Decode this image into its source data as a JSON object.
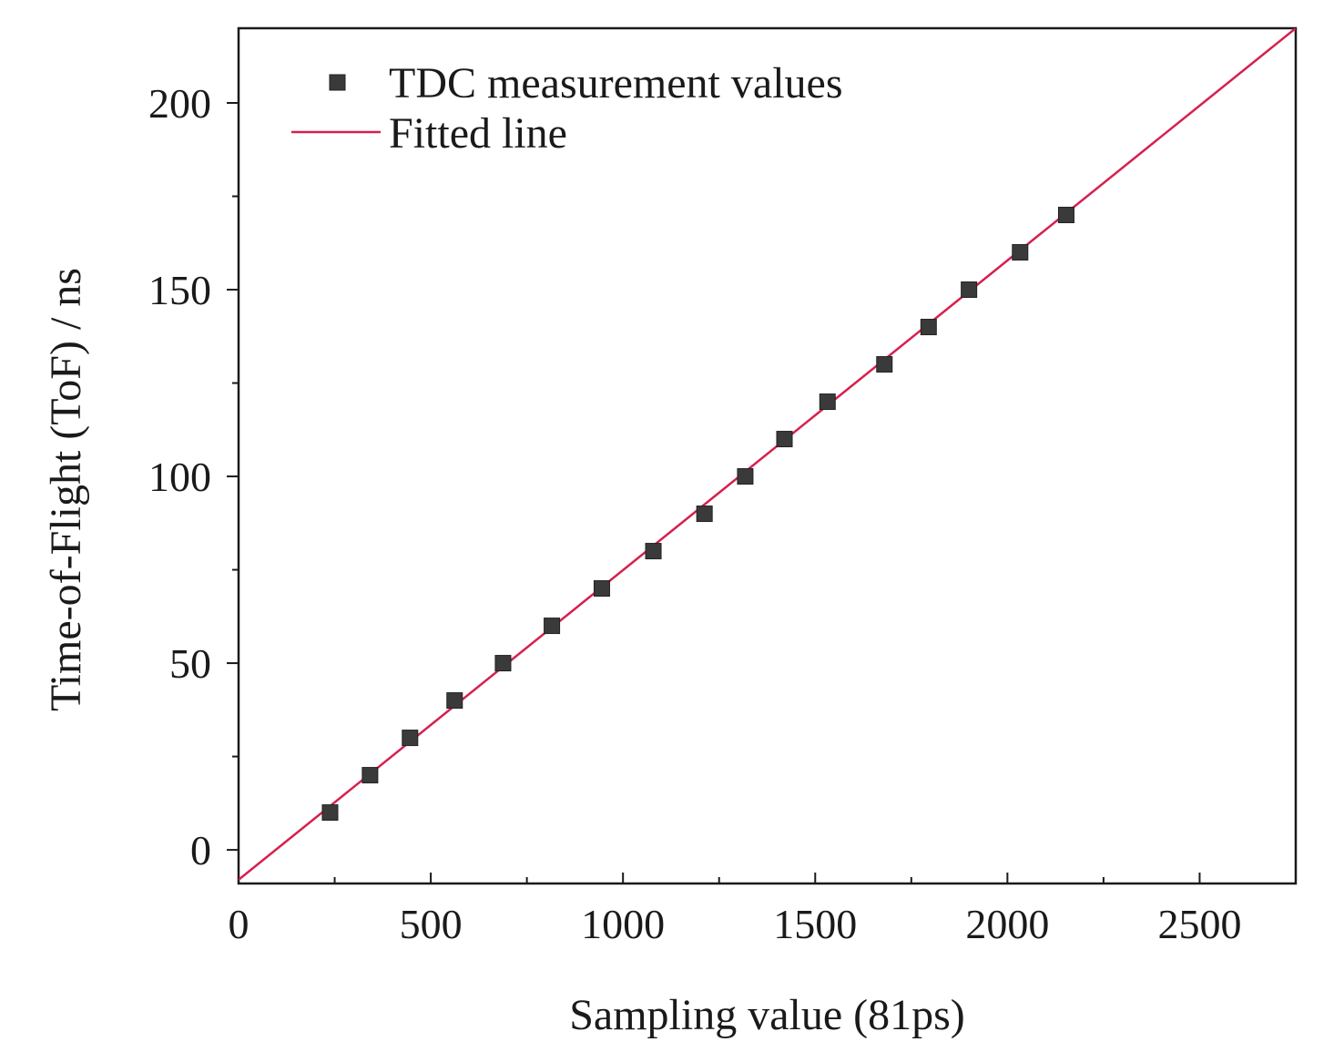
{
  "chart_data": {
    "type": "scatter",
    "xlabel": "Sampling value (81ps)",
    "ylabel": "Time-of-Flight (ToF) / ns",
    "xlim": [
      0,
      2750
    ],
    "ylim": [
      -9,
      220
    ],
    "x_ticks": [
      0,
      500,
      1000,
      1500,
      2000,
      2500
    ],
    "x_tick_labels": [
      "0",
      "500",
      "1000",
      "1500",
      "2000",
      "2500"
    ],
    "y_ticks": [
      0,
      50,
      100,
      150,
      200
    ],
    "y_tick_labels": [
      "0",
      "50",
      "100",
      "150",
      "200"
    ],
    "grid": false,
    "legend_position": "top-left",
    "series": [
      {
        "name": "TDC measurement values",
        "kind": "scatter",
        "marker": "square",
        "color": "#3a3a3a",
        "x": [
          238,
          342,
          446,
          562,
          688,
          815,
          945,
          1079,
          1212,
          1318,
          1420,
          1532,
          1680,
          1795,
          1900,
          2033,
          2153
        ],
        "y": [
          10,
          20,
          30,
          40,
          50,
          60,
          70,
          80,
          90,
          100,
          110,
          120,
          130,
          140,
          150,
          160,
          170
        ]
      },
      {
        "name": "Fitted line",
        "kind": "line",
        "color": "#d6204e",
        "x": [
          0,
          2750
        ],
        "y": [
          -8,
          220
        ]
      }
    ]
  }
}
